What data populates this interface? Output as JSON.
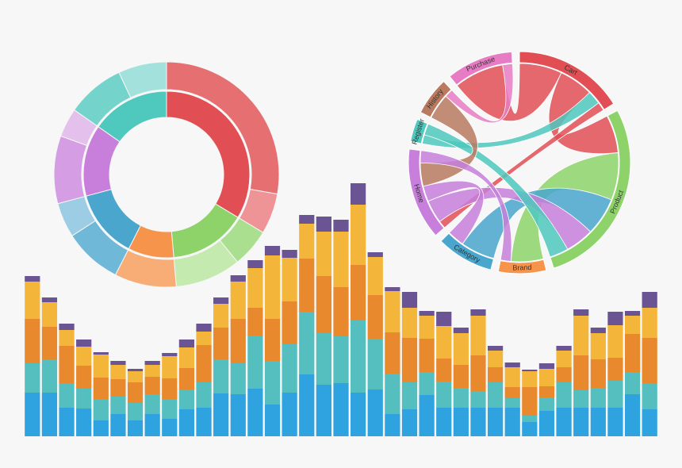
{
  "chart_data": [
    {
      "type": "sunburst",
      "rings": [
        {
          "values": [
            121,
            54,
            32,
            48,
            50,
            55
          ],
          "colors": [
            "#e14f55",
            "#8dd36a",
            "#f5944a",
            "#4aa6cc",
            "#c77fdb",
            "#4fc8bd"
          ]
        },
        {
          "values": [
            100,
            21,
            20,
            34,
            32,
            30,
            18,
            35,
            15,
            30,
            25
          ],
          "colors": [
            "#e66f72",
            "#ee9396",
            "#a9df8f",
            "#c4eab0",
            "#f8ad77",
            "#6fb8d8",
            "#9ccde4",
            "#d59de3",
            "#e4c1ec",
            "#74d3ca",
            "#a3e2dc"
          ]
        }
      ]
    },
    {
      "type": "chord",
      "groups": [
        {
          "label": "Cart",
          "value": 58,
          "color": "#e14f55"
        },
        {
          "label": "Product",
          "value": 100,
          "color": "#8dd36a"
        },
        {
          "label": "Brand",
          "value": 25,
          "color": "#f5944a"
        },
        {
          "label": "Category",
          "value": 30,
          "color": "#4aa6cc"
        },
        {
          "label": "Home",
          "value": 48,
          "color": "#c77fdb"
        },
        {
          "label": "Register",
          "value": 12,
          "color": "#4fc8bd"
        },
        {
          "label": "History",
          "value": 20,
          "color": "#b97a60"
        },
        {
          "label": "Purchase",
          "value": 35,
          "color": "#e87cc4"
        }
      ],
      "links": [
        {
          "source": "Cart",
          "target": "Purchase",
          "value": 25
        },
        {
          "source": "Cart",
          "target": "Product",
          "value": 20
        },
        {
          "source": "Register",
          "target": "Cart",
          "value": 8
        },
        {
          "source": "Cart",
          "target": "Home",
          "value": 5
        },
        {
          "source": "Product",
          "target": "Brand",
          "value": 25
        },
        {
          "source": "Category",
          "target": "Product",
          "value": 20
        },
        {
          "source": "Home",
          "target": "Product",
          "value": 15
        },
        {
          "source": "Register",
          "target": "Product",
          "value": 10
        },
        {
          "source": "Home",
          "target": "Category",
          "value": 10
        },
        {
          "source": "History",
          "target": "Home",
          "value": 15
        },
        {
          "source": "Home",
          "target": "Brand",
          "value": 8
        },
        {
          "source": "Purchase",
          "target": "History",
          "value": 5
        }
      ]
    },
    {
      "type": "stacked-bar",
      "series": [
        {
          "color": "#2fa3e0",
          "values": [
            55,
            55,
            36,
            35,
            20,
            28,
            20,
            28,
            22,
            34,
            36,
            54,
            53,
            60,
            40,
            55,
            78,
            65,
            67,
            55,
            59,
            28,
            34,
            52,
            36,
            36,
            36,
            36,
            36,
            18,
            32,
            36,
            36,
            36,
            36,
            53,
            34
          ]
        },
        {
          "color": "#55bfbf",
          "values": [
            37,
            42,
            31,
            25,
            27,
            22,
            22,
            25,
            25,
            25,
            32,
            43,
            39,
            67,
            55,
            61,
            79,
            65,
            59,
            91,
            64,
            51,
            34,
            29,
            33,
            25,
            21,
            32,
            12,
            8,
            17,
            32,
            22,
            25,
            34,
            28,
            33
          ]
        },
        {
          "color": "#e8892e",
          "values": [
            56,
            41,
            47,
            29,
            27,
            22,
            26,
            22,
            26,
            27,
            47,
            40,
            56,
            35,
            53,
            54,
            67,
            72,
            62,
            70,
            55,
            52,
            56,
            42,
            29,
            29,
            45,
            19,
            14,
            36,
            14,
            19,
            44,
            36,
            29,
            48,
            57
          ]
        },
        {
          "color": "#f4b63a",
          "values": [
            47,
            31,
            20,
            24,
            29,
            18,
            14,
            15,
            28,
            26,
            17,
            30,
            47,
            50,
            80,
            55,
            44,
            56,
            70,
            76,
            48,
            52,
            38,
            29,
            41,
            40,
            50,
            21,
            25,
            20,
            22,
            21,
            50,
            33,
            41,
            23,
            38
          ]
        },
        {
          "color": "#6a5494",
          "values": [
            7,
            6,
            8,
            9,
            3,
            5,
            3,
            5,
            4,
            10,
            10,
            8,
            8,
            10,
            12,
            10,
            11,
            19,
            15,
            27,
            6,
            5,
            20,
            6,
            18,
            7,
            8,
            6,
            6,
            2,
            7,
            6,
            8,
            7,
            17,
            6,
            20
          ]
        }
      ]
    }
  ]
}
